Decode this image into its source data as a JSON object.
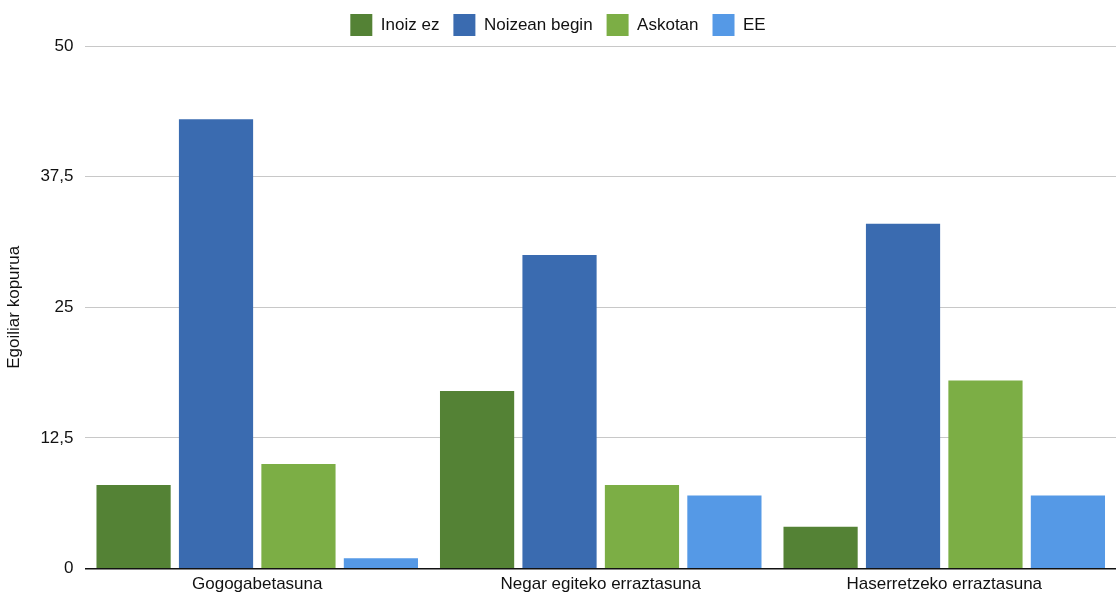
{
  "chart_data": {
    "type": "bar",
    "ylabel": "Egoiliar kopurua",
    "categories": [
      "Gogogabetasuna",
      "Negar egiteko erraztasuna",
      "Haserretzeko erraztasuna"
    ],
    "series": [
      {
        "name": "Inoiz ez",
        "color": "#548235",
        "values": [
          8,
          17,
          4
        ]
      },
      {
        "name": "Noizean begin",
        "color": "#3a6bb0",
        "values": [
          43,
          30,
          33
        ]
      },
      {
        "name": "Askotan",
        "color": "#7cae45",
        "values": [
          10,
          8,
          18
        ]
      },
      {
        "name": "EE",
        "color": "#5599e6",
        "values": [
          1,
          7,
          7
        ]
      }
    ],
    "ylim": [
      0,
      50
    ],
    "yticks": [
      0,
      {
        "value": 12.5,
        "label": "12,5"
      },
      25,
      {
        "value": 37.5,
        "label": "37,5"
      },
      50
    ],
    "grid": "y",
    "legend": "top"
  }
}
